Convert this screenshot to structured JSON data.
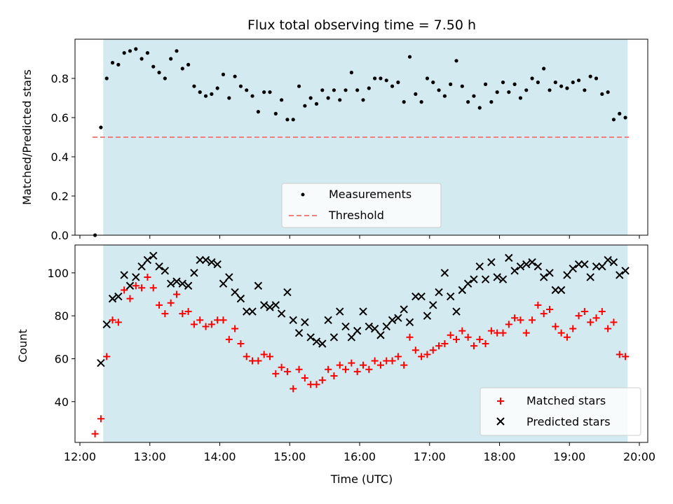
{
  "colors": {
    "shading": "#d4eaf1",
    "threshold": "#f08080",
    "matched": "#ff0000",
    "predicted": "#000000",
    "measurement": "#000000"
  },
  "chart_data": [
    {
      "type": "scatter",
      "title": "Flux total observing time = 7.50 h",
      "ylabel": "Matched/Predicted stars",
      "ylim": [
        0,
        1.0
      ],
      "yticks": [
        "0.0",
        "0.2",
        "0.4",
        "0.6",
        "0.8"
      ],
      "shaded_interval": [
        "12:20",
        "19:50"
      ],
      "threshold": 0.5,
      "legend_placement": "lower-center",
      "legend": [
        "Measurements",
        "Threshold"
      ],
      "series": [
        {
          "name": "Measurements",
          "x": [
            "12:13",
            "12:18",
            "12:23",
            "12:28",
            "12:33",
            "12:38",
            "12:43",
            "12:48",
            "12:53",
            "12:58",
            "13:03",
            "13:08",
            "13:13",
            "13:18",
            "13:23",
            "13:28",
            "13:33",
            "13:38",
            "13:43",
            "13:48",
            "13:53",
            "13:58",
            "14:03",
            "14:08",
            "14:13",
            "14:18",
            "14:23",
            "14:28",
            "14:33",
            "14:38",
            "14:43",
            "14:48",
            "14:53",
            "14:58",
            "15:03",
            "15:08",
            "15:13",
            "15:18",
            "15:23",
            "15:28",
            "15:33",
            "15:38",
            "15:43",
            "15:48",
            "15:53",
            "15:58",
            "16:03",
            "16:08",
            "16:13",
            "16:18",
            "16:23",
            "16:28",
            "16:33",
            "16:38",
            "16:43",
            "16:48",
            "16:53",
            "16:58",
            "17:03",
            "17:08",
            "17:13",
            "17:18",
            "17:23",
            "17:28",
            "17:33",
            "17:38",
            "17:43",
            "17:48",
            "17:53",
            "17:58",
            "18:03",
            "18:08",
            "18:13",
            "18:18",
            "18:23",
            "18:28",
            "18:33",
            "18:38",
            "18:43",
            "18:48",
            "18:53",
            "18:58",
            "19:03",
            "19:08",
            "19:13",
            "19:18",
            "19:23",
            "19:28",
            "19:33",
            "19:38",
            "19:43",
            "19:48"
          ],
          "y": [
            0.0,
            0.55,
            0.8,
            0.88,
            0.87,
            0.93,
            0.94,
            0.95,
            0.9,
            0.93,
            0.86,
            0.83,
            0.8,
            0.9,
            0.94,
            0.85,
            0.87,
            0.76,
            0.73,
            0.71,
            0.72,
            0.75,
            0.82,
            0.7,
            0.81,
            0.76,
            0.74,
            0.71,
            0.63,
            0.73,
            0.73,
            0.62,
            0.69,
            0.59,
            0.59,
            0.76,
            0.66,
            0.7,
            0.67,
            0.74,
            0.7,
            0.74,
            0.69,
            0.74,
            0.83,
            0.74,
            0.69,
            0.75,
            0.8,
            0.8,
            0.79,
            0.76,
            0.78,
            0.68,
            0.91,
            0.72,
            0.68,
            0.8,
            0.78,
            0.74,
            0.71,
            0.77,
            0.89,
            0.76,
            0.68,
            0.71,
            0.65,
            0.77,
            0.68,
            0.73,
            0.78,
            0.73,
            0.77,
            0.7,
            0.74,
            0.8,
            0.78,
            0.85,
            0.74,
            0.78,
            0.76,
            0.75,
            0.78,
            0.79,
            0.74,
            0.81,
            0.8,
            0.72,
            0.73,
            0.59,
            0.62,
            0.6
          ]
        }
      ]
    },
    {
      "type": "scatter",
      "xlabel": "Time (UTC)",
      "ylabel": "Count",
      "ylim": [
        21,
        113
      ],
      "yticks": [
        "40",
        "60",
        "80",
        "100"
      ],
      "xticks": [
        "12:00",
        "13:00",
        "14:00",
        "15:00",
        "16:00",
        "17:00",
        "18:00",
        "19:00",
        "20:00"
      ],
      "shaded_interval": [
        "12:20",
        "19:50"
      ],
      "legend_placement": "lower-right",
      "legend": [
        "Matched stars",
        "Predicted stars"
      ],
      "series": [
        {
          "name": "Matched stars",
          "x": [
            "12:13",
            "12:18",
            "12:23",
            "12:28",
            "12:33",
            "12:38",
            "12:43",
            "12:48",
            "12:53",
            "12:58",
            "13:03",
            "13:08",
            "13:13",
            "13:18",
            "13:23",
            "13:28",
            "13:33",
            "13:38",
            "13:43",
            "13:48",
            "13:53",
            "13:58",
            "14:03",
            "14:08",
            "14:13",
            "14:18",
            "14:23",
            "14:28",
            "14:33",
            "14:38",
            "14:43",
            "14:48",
            "14:53",
            "14:58",
            "15:03",
            "15:08",
            "15:13",
            "15:18",
            "15:23",
            "15:28",
            "15:33",
            "15:38",
            "15:43",
            "15:48",
            "15:53",
            "15:58",
            "16:03",
            "16:08",
            "16:13",
            "16:18",
            "16:23",
            "16:28",
            "16:33",
            "16:38",
            "16:43",
            "16:48",
            "16:53",
            "16:58",
            "17:03",
            "17:08",
            "17:13",
            "17:18",
            "17:23",
            "17:28",
            "17:33",
            "17:38",
            "17:43",
            "17:48",
            "17:53",
            "17:58",
            "18:03",
            "18:08",
            "18:13",
            "18:18",
            "18:23",
            "18:28",
            "18:33",
            "18:38",
            "18:43",
            "18:48",
            "18:53",
            "18:58",
            "19:03",
            "19:08",
            "19:13",
            "19:18",
            "19:23",
            "19:28",
            "19:33",
            "19:38",
            "19:43",
            "19:48"
          ],
          "y": [
            25,
            32,
            61,
            78,
            77,
            92,
            88,
            94,
            93,
            98,
            93,
            85,
            81,
            86,
            90,
            81,
            82,
            76,
            78,
            75,
            76,
            78,
            78,
            69,
            74,
            67,
            61,
            59,
            59,
            62,
            61,
            53,
            56,
            54,
            46,
            55,
            51,
            48,
            48,
            50,
            55,
            52,
            57,
            55,
            58,
            54,
            57,
            55,
            59,
            57,
            59,
            59,
            61,
            57,
            70,
            64,
            61,
            62,
            64,
            66,
            67,
            71,
            69,
            73,
            70,
            66,
            69,
            67,
            73,
            72,
            72,
            76,
            79,
            78,
            72,
            78,
            85,
            81,
            83,
            75,
            72,
            70,
            74,
            80,
            82,
            77,
            79,
            82,
            74,
            77,
            62,
            61
          ]
        },
        {
          "name": "Predicted stars",
          "x": [
            "12:18",
            "12:23",
            "12:28",
            "12:33",
            "12:38",
            "12:43",
            "12:48",
            "12:53",
            "12:58",
            "13:03",
            "13:08",
            "13:13",
            "13:18",
            "13:23",
            "13:28",
            "13:33",
            "13:38",
            "13:43",
            "13:48",
            "13:53",
            "13:58",
            "14:03",
            "14:08",
            "14:13",
            "14:18",
            "14:23",
            "14:28",
            "14:33",
            "14:38",
            "14:43",
            "14:48",
            "14:53",
            "14:58",
            "15:03",
            "15:08",
            "15:13",
            "15:18",
            "15:23",
            "15:28",
            "15:33",
            "15:38",
            "15:43",
            "15:48",
            "15:53",
            "15:58",
            "16:03",
            "16:08",
            "16:13",
            "16:18",
            "16:23",
            "16:28",
            "16:33",
            "16:38",
            "16:43",
            "16:48",
            "16:53",
            "16:58",
            "17:03",
            "17:08",
            "17:13",
            "17:18",
            "17:23",
            "17:28",
            "17:33",
            "17:38",
            "17:43",
            "17:48",
            "17:53",
            "17:58",
            "18:03",
            "18:08",
            "18:13",
            "18:18",
            "18:23",
            "18:28",
            "18:33",
            "18:38",
            "18:43",
            "18:48",
            "18:53",
            "18:58",
            "19:03",
            "19:08",
            "19:13",
            "19:18",
            "19:23",
            "19:28",
            "19:33",
            "19:38",
            "19:43",
            "19:48"
          ],
          "y": [
            58,
            76,
            88,
            89,
            99,
            94,
            98,
            103,
            106,
            108,
            103,
            101,
            95,
            96,
            95,
            94,
            100,
            106,
            106,
            105,
            104,
            95,
            98,
            91,
            88,
            82,
            82,
            94,
            85,
            84,
            85,
            81,
            91,
            78,
            72,
            77,
            70,
            68,
            67,
            78,
            70,
            82,
            75,
            70,
            73,
            82,
            75,
            74,
            71,
            75,
            78,
            79,
            83,
            77,
            89,
            89,
            80,
            85,
            91,
            100,
            89,
            82,
            92,
            95,
            97,
            103,
            97,
            105,
            98,
            97,
            107,
            101,
            103,
            104,
            105,
            103,
            98,
            100,
            92,
            92,
            99,
            102,
            104,
            104,
            98,
            103,
            103,
            106,
            105,
            99,
            101
          ]
        }
      ]
    }
  ]
}
